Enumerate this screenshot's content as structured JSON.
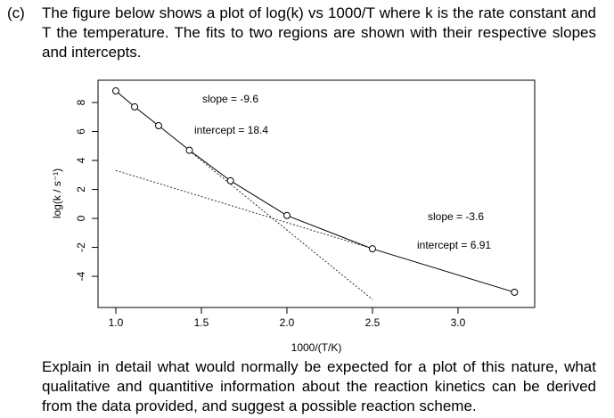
{
  "question": {
    "label": "(c)",
    "text": "The figure below shows a plot of log(k) vs 1000/T where k is the rate constant and T the temperature.  The fits to two regions are shown with their respective slopes and intercepts.",
    "followup": "Explain in detail what would normally be expected for a plot of this nature, what qualitative and quantitive information about the reaction kinetics can be derived from the data provided, and suggest a possible reaction scheme."
  },
  "chart_data": {
    "type": "line",
    "xlabel": "1000/(T/K)",
    "ylabel": "log(k / s⁻¹)",
    "x": [
      1.0,
      1.11,
      1.25,
      1.43,
      1.67,
      2.0,
      2.5,
      3.33
    ],
    "values": [
      8.8,
      7.7,
      6.4,
      4.7,
      2.6,
      0.2,
      -2.1,
      -5.1
    ],
    "color": "#000000",
    "fit_lines": [
      {
        "x": [
          1.43,
          2.5
        ],
        "values": [
          4.67,
          -5.6
        ]
      },
      {
        "x": [
          1.0,
          2.5
        ],
        "values": [
          3.31,
          -2.09
        ]
      }
    ],
    "annotations": [
      "slope = -9.6",
      "intercept = 18.4",
      "slope = -3.6",
      "intercept = 6.91"
    ],
    "xlim": [
      0.896,
      3.448
    ],
    "xticks": [
      {
        "value": 1,
        "label": "1.0"
      },
      1.5,
      {
        "value": 2,
        "label": "2.0"
      },
      2.5,
      {
        "value": 3,
        "label": "3.0"
      }
    ],
    "ylim": [
      -6.15,
      9.54
    ],
    "yticks": [
      -4,
      -2,
      0,
      2,
      4,
      6,
      8
    ]
  }
}
